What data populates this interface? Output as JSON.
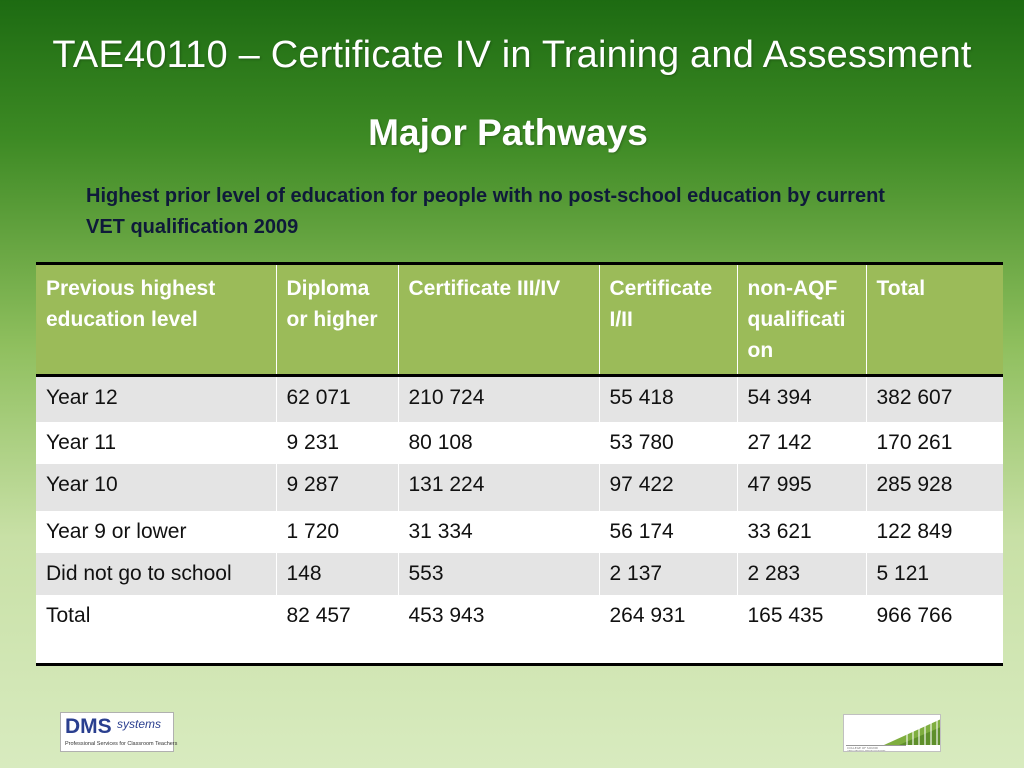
{
  "slide": {
    "title": "TAE40110 – Certificate IV in Training and Assessment",
    "subtitle": "Major Pathways",
    "caption": "Highest prior level of education for people with no post-school education by current VET qualification 2009"
  },
  "table": {
    "headers": [
      "Previous highest education level",
      "Diploma or higher",
      "Certificate III/IV",
      "Certificate I/II",
      "non-AQF qualification",
      "Total"
    ],
    "rows": [
      [
        "Year 12",
        "62 071",
        "210 724",
        "55 418",
        "54 394",
        "382 607"
      ],
      [
        "Year 11",
        "9 231",
        "80 108",
        "53 780",
        "27 142",
        "170 261"
      ],
      [
        "Year 10",
        "9 287",
        "131 224",
        "97 422",
        "47 995",
        "285 928"
      ],
      [
        "Year 9 or lower",
        "1 720",
        "31 334",
        "56 174",
        "33 621",
        "122 849"
      ],
      [
        "Did not go to school",
        "148",
        "553",
        "2 137",
        "2 283",
        "5 121"
      ],
      [
        "Total",
        "82 457",
        "453 943",
        "264 931",
        "165 435",
        "966 766"
      ]
    ]
  },
  "logos": {
    "dms_name": "DMS",
    "dms_suffix": "systems",
    "dms_tagline": "Professional Services for Classroom Teachers",
    "college_text": "COLLEGE OF SOUND AND MUSIC PRODUCTION"
  },
  "colors": {
    "header_fill": "#9bbb59",
    "row_shade": "#e4e4e4",
    "background_top": "#1d6b12",
    "background_bottom": "#d8ebbf"
  }
}
